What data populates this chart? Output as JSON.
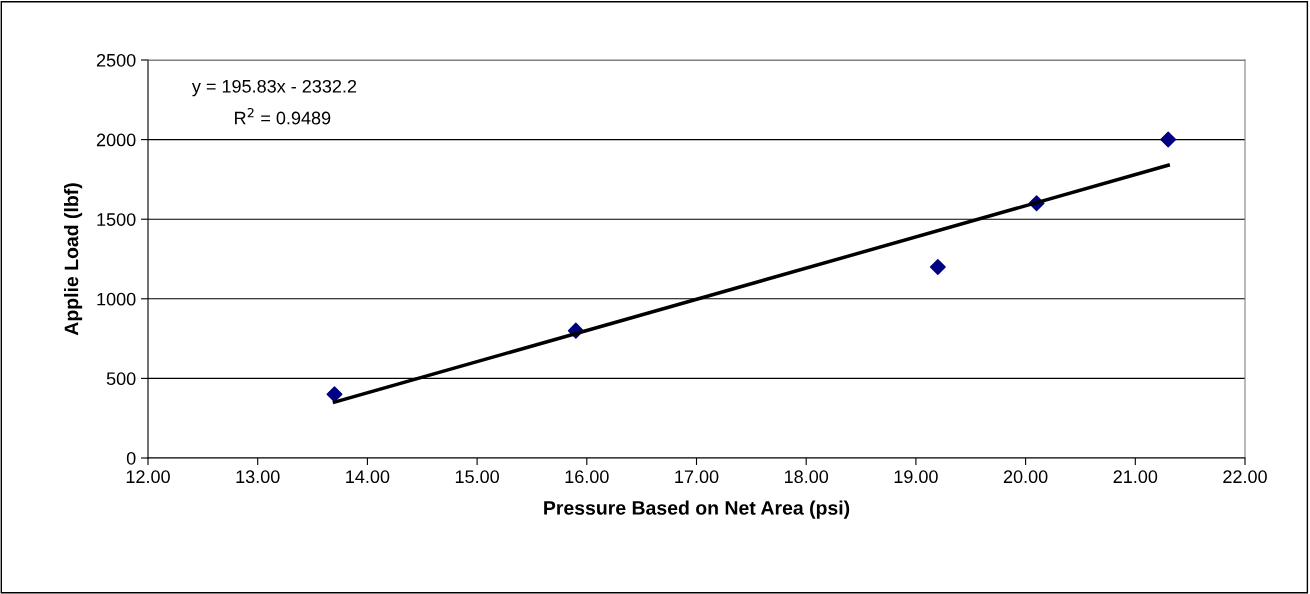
{
  "chart_data": {
    "type": "scatter",
    "xlabel": "Pressure Based on Net Area (psi)",
    "ylabel": "Applie Load (lbf)",
    "xlim": [
      12,
      22
    ],
    "xticks": [
      {
        "value": 12,
        "label": "12.00"
      },
      {
        "value": 13,
        "label": "13.00"
      },
      {
        "value": 14,
        "label": "14.00"
      },
      {
        "value": 15,
        "label": "15.00"
      },
      {
        "value": 16,
        "label": "16.00"
      },
      {
        "value": 17,
        "label": "17.00"
      },
      {
        "value": 18,
        "label": "18.00"
      },
      {
        "value": 19,
        "label": "19.00"
      },
      {
        "value": 20,
        "label": "20.00"
      },
      {
        "value": 21,
        "label": "21.00"
      },
      {
        "value": 22,
        "label": "22.00"
      }
    ],
    "ylim": [
      0,
      2500
    ],
    "yticks": [
      0,
      500,
      1000,
      1500,
      2000,
      2500
    ],
    "grid": "y",
    "series": [
      {
        "color": "#000080",
        "marker": "diamond",
        "x": [
          13.7,
          15.9,
          19.2,
          20.1,
          21.3
        ],
        "values": [
          400,
          800,
          1200,
          1600,
          2000
        ]
      },
      {
        "type": "line",
        "color": "#000000",
        "marker": "none",
        "line_style": "solid",
        "x": [
          13.7,
          21.3
        ],
        "values": [
          351,
          1839
        ]
      }
    ],
    "annotations": [
      "y = 195.83x - 2332.2",
      "R$^{2}$ = 0.9489"
    ]
  }
}
